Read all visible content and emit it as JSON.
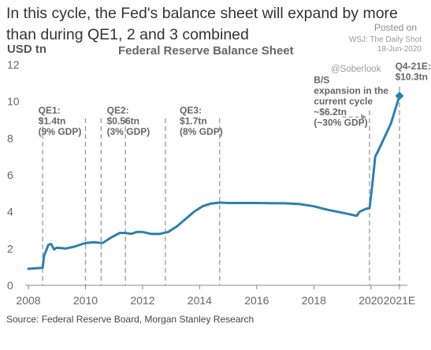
{
  "header": {
    "headline": "In this cycle, the Fed's balance sheet will expand by more than during QE1, 2 and 3 combined",
    "posted_on": "Posted on",
    "source_credit": "WSJ: The Daily Shot",
    "posted_date": "18-Jun-2020",
    "handle": "@Soberlook"
  },
  "chart_data": {
    "type": "line",
    "title": "Federal Reserve Balance Sheet",
    "ylabel": "USD tn",
    "xlabel": "",
    "ylim": [
      0,
      12
    ],
    "yticks": [
      0,
      2,
      4,
      6,
      8,
      10,
      12
    ],
    "xlim": [
      2008,
      2021
    ],
    "xticks": [
      {
        "value": 2008,
        "label": "2008"
      },
      {
        "value": 2010,
        "label": "2010"
      },
      {
        "value": 2012,
        "label": "2012"
      },
      {
        "value": 2014,
        "label": "2014"
      },
      {
        "value": 2016,
        "label": "2016"
      },
      {
        "value": 2018,
        "label": "2018"
      },
      {
        "value": 2020,
        "label": "2020"
      },
      {
        "value": 2021,
        "label": "2021E"
      }
    ],
    "grid": false,
    "line_color": "#2f7fae",
    "series": [
      {
        "x": [
          2008.0,
          2008.5,
          2008.55,
          2008.7,
          2008.8,
          2008.9,
          2009.0,
          2009.3,
          2009.6,
          2009.9,
          2010.0,
          2010.3,
          2010.6,
          2010.9,
          2011.2,
          2011.4,
          2011.6,
          2011.8,
          2012.0,
          2012.3,
          2012.6,
          2012.9,
          2013.2,
          2013.5,
          2013.8,
          2014.1,
          2014.4,
          2014.7,
          2015.0,
          2015.5,
          2016.0,
          2016.5,
          2017.0,
          2017.5,
          2018.0,
          2018.5,
          2019.0,
          2019.5,
          2019.6,
          2019.8,
          2019.95,
          2020.05,
          2020.15,
          2020.25,
          2020.4,
          2020.7,
          2021.0
        ],
        "y": [
          0.9,
          0.95,
          1.6,
          2.2,
          2.25,
          1.95,
          2.05,
          2.0,
          2.1,
          2.25,
          2.3,
          2.35,
          2.3,
          2.6,
          2.85,
          2.85,
          2.8,
          2.9,
          2.9,
          2.8,
          2.8,
          2.9,
          3.2,
          3.6,
          4.0,
          4.3,
          4.45,
          4.5,
          4.48,
          4.48,
          4.48,
          4.47,
          4.46,
          4.42,
          4.3,
          4.1,
          3.95,
          3.78,
          4.0,
          4.15,
          4.2,
          5.5,
          7.0,
          7.3,
          7.8,
          8.8,
          10.3
        ]
      }
    ],
    "end_marker": {
      "x": 2021.0,
      "y": 10.3
    },
    "vlines": [
      2008.5,
      2010.0,
      2010.55,
      2011.4,
      2012.8,
      2014.7,
      2019.95,
      2021.0
    ],
    "annotations": [
      {
        "lines": [
          "QE1:",
          "$1.4tn",
          "(9% GDP)"
        ],
        "x": 2008.35,
        "y": 9.35
      },
      {
        "lines": [
          "QE2:",
          "$0.56tn",
          "(3% GDP)"
        ],
        "x": 2010.75,
        "y": 9.35
      },
      {
        "lines": [
          "QE3:",
          "$1.7tn",
          "(8% GDP)"
        ],
        "x": 2013.3,
        "y": 9.35
      },
      {
        "lines": [
          "B/S",
          "expansion in the",
          "current cycle",
          "~$6.2tn",
          "(~30% GDP)"
        ],
        "x": 2018.0,
        "y": 11.0
      },
      {
        "lines": [
          "Q4-21E:",
          "$10.3tn"
        ],
        "x": 2020.85,
        "y": 11.75
      }
    ],
    "arrow": {
      "from": {
        "x": 2019.0,
        "y": 9.15
      },
      "to": {
        "x": 2019.9,
        "y": 9.15
      }
    }
  },
  "footer": {
    "source": "Source: Federal Reserve Board, Morgan Stanley Research"
  }
}
